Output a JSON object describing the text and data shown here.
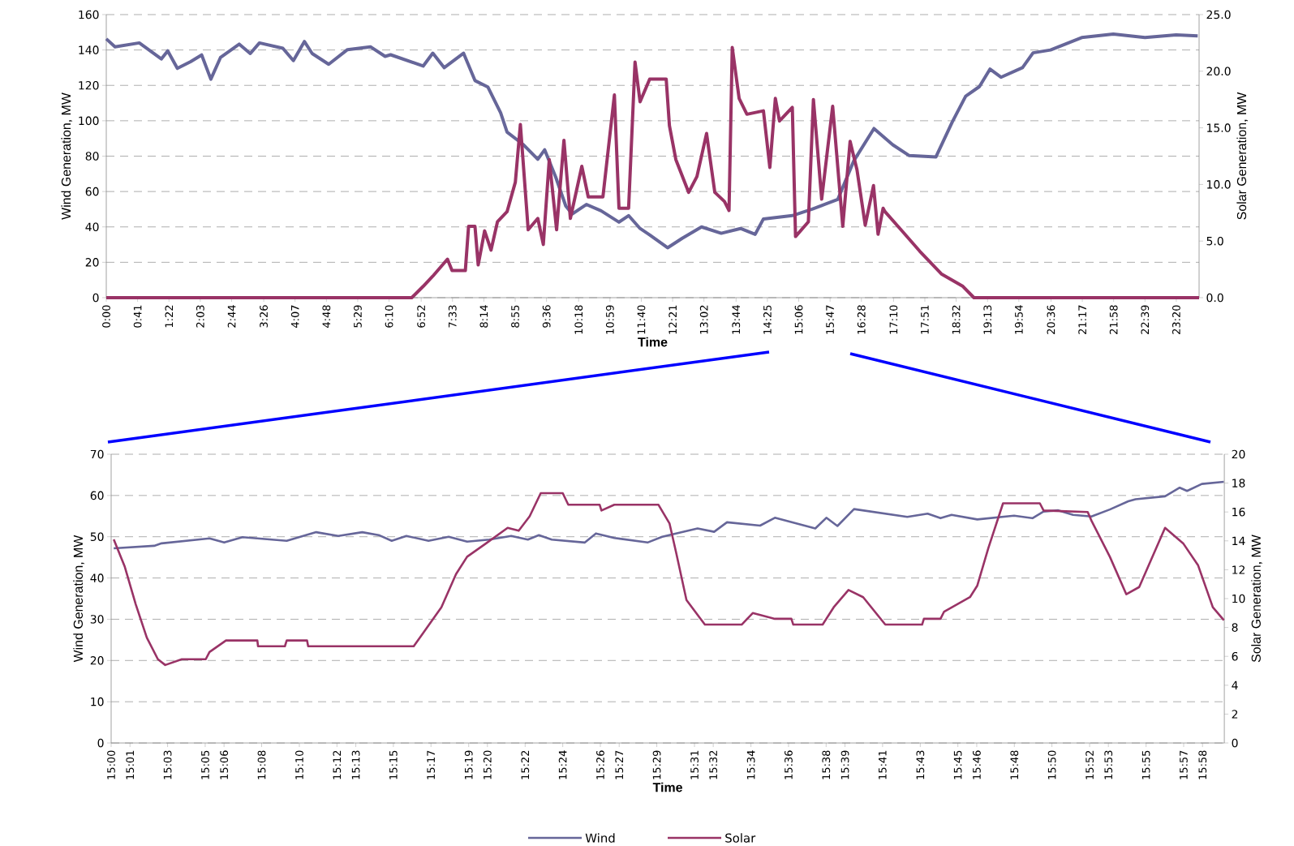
{
  "chart_data": [
    {
      "type": "line",
      "xlabel": "Time",
      "ylabel": "Wind Generation, MW",
      "y2label": "Solar Generation, MW",
      "xlim": [
        0,
        23.83
      ],
      "xticks": [
        {
          "value": 0,
          "label": "0:00"
        },
        {
          "value": 0.6833,
          "label": "0:41"
        },
        {
          "value": 1.3667,
          "label": "1:22"
        },
        {
          "value": 2.05,
          "label": "2:03"
        },
        {
          "value": 2.7333,
          "label": "2:44"
        },
        {
          "value": 3.4333,
          "label": "3:26"
        },
        {
          "value": 4.1167,
          "label": "4:07"
        },
        {
          "value": 4.8,
          "label": "4:48"
        },
        {
          "value": 5.4833,
          "label": "5:29"
        },
        {
          "value": 6.1667,
          "label": "6:10"
        },
        {
          "value": 6.8667,
          "label": "6:52"
        },
        {
          "value": 7.55,
          "label": "7:33"
        },
        {
          "value": 8.2333,
          "label": "8:14"
        },
        {
          "value": 8.9167,
          "label": "8:55"
        },
        {
          "value": 9.6,
          "label": "9:36"
        },
        {
          "value": 10.3,
          "label": "10:18"
        },
        {
          "value": 10.9833,
          "label": "10:59"
        },
        {
          "value": 11.6667,
          "label": "11:40"
        },
        {
          "value": 12.35,
          "label": "12:21"
        },
        {
          "value": 13.0333,
          "label": "13:02"
        },
        {
          "value": 13.7333,
          "label": "13:44"
        },
        {
          "value": 14.4167,
          "label": "14:25"
        },
        {
          "value": 15.1,
          "label": "15:06"
        },
        {
          "value": 15.7833,
          "label": "15:47"
        },
        {
          "value": 16.4667,
          "label": "16:28"
        },
        {
          "value": 17.1667,
          "label": "17:10"
        },
        {
          "value": 17.85,
          "label": "17:51"
        },
        {
          "value": 18.5333,
          "label": "18:32"
        },
        {
          "value": 19.2167,
          "label": "19:13"
        },
        {
          "value": 19.9,
          "label": "19:54"
        },
        {
          "value": 20.6,
          "label": "20:36"
        },
        {
          "value": 21.2833,
          "label": "21:17"
        },
        {
          "value": 21.9667,
          "label": "21:58"
        },
        {
          "value": 22.65,
          "label": "22:39"
        },
        {
          "value": 23.3333,
          "label": "23:20"
        }
      ],
      "ylim": [
        0,
        160
      ],
      "yticks": [
        0,
        20,
        40,
        60,
        80,
        100,
        120,
        140,
        160
      ],
      "y2lim": [
        0,
        25
      ],
      "y2ticks": [
        {
          "value": 0,
          "label": "0.0"
        },
        {
          "value": 5,
          "label": "5.0"
        },
        {
          "value": 10,
          "label": "10.0"
        },
        {
          "value": 15,
          "label": "15.0"
        },
        {
          "value": 20,
          "label": "20.0"
        },
        {
          "value": 25,
          "label": "25.0"
        }
      ],
      "grid": "y",
      "series": [
        {
          "color": "#666699",
          "x": [
            0,
            0.19,
            0.72,
            1.2,
            1.34,
            1.55,
            1.84,
            2.08,
            2.28,
            2.49,
            2.9,
            3.14,
            3.34,
            3.85,
            4.08,
            4.32,
            4.49,
            4.85,
            5.26,
            5.76,
            6.08,
            6.2,
            6.91,
            7.12,
            7.37,
            7.79,
            8.04,
            8.32,
            8.6,
            8.74,
            9.1,
            9.41,
            9.56,
            9.8,
            10.02,
            10.16,
            10.47,
            10.79,
            11.18,
            11.39,
            11.64,
            11.85,
            12.24,
            12.56,
            12.98,
            13.41,
            13.83,
            14.15,
            14.33,
            14.96,
            15.39,
            15.95,
            16.3,
            16.74,
            17.15,
            17.51,
            18.09,
            18.45,
            18.74,
            19.04,
            19.27,
            19.51,
            19.98,
            20.21,
            20.59,
            21.27,
            21.96,
            22.65,
            23.33,
            23.8
          ],
          "values": [
            146.3,
            141.8,
            144,
            134.9,
            139.5,
            129.6,
            133.4,
            137.2,
            123.5,
            135.7,
            143.3,
            138,
            144,
            141,
            134,
            144.8,
            138,
            131.9,
            140.2,
            141.8,
            136.4,
            137.3,
            130.9,
            138.2,
            130,
            138.2,
            122.7,
            119.1,
            104.5,
            93.6,
            86.4,
            78.2,
            83.6,
            68.2,
            51.8,
            47.3,
            52.7,
            49.1,
            42.7,
            46.4,
            39.1,
            35.5,
            28.2,
            33.6,
            40,
            36.4,
            39.1,
            35.8,
            44.5,
            46.4,
            50,
            55.5,
            77.3,
            95.6,
            86.4,
            80.3,
            79.5,
            99.4,
            113.9,
            119.3,
            129.2,
            124.6,
            130,
            138.4,
            140,
            147,
            149,
            147,
            148.5,
            148
          ]
        },
        {
          "color": "#993366",
          "axis": "y2",
          "x": [
            0,
            6.66,
            6.91,
            7.12,
            7.44,
            7.54,
            7.83,
            7.9,
            8.04,
            8.11,
            8.25,
            8.39,
            8.53,
            8.74,
            8.92,
            9.03,
            9.2,
            9.41,
            9.53,
            9.66,
            9.82,
            9.98,
            10.12,
            10.37,
            10.51,
            10.83,
            11.08,
            11.18,
            11.39,
            11.53,
            11.64,
            11.85,
            12.21,
            12.28,
            12.42,
            12.7,
            12.88,
            13.09,
            13.27,
            13.48,
            13.58,
            13.65,
            13.8,
            13.97,
            14.33,
            14.47,
            14.59,
            14.68,
            14.96,
            15.03,
            15.31,
            15.42,
            15.6,
            15.84,
            16.06,
            16.22,
            16.37,
            16.55,
            16.73,
            16.83,
            16.94,
            16.98,
            17.33,
            17.74,
            18.21,
            18.68,
            18.92,
            23.83
          ],
          "values": [
            0,
            0,
            1.0,
            1.9,
            3.4,
            2.4,
            2.4,
            6.3,
            6.3,
            2.9,
            5.9,
            4.2,
            6.7,
            7.6,
            10.2,
            15.3,
            6.0,
            7.0,
            4.7,
            12.2,
            6.0,
            13.9,
            7.0,
            11.6,
            8.9,
            8.9,
            17.9,
            7.9,
            7.9,
            20.8,
            17.3,
            19.3,
            19.3,
            15.2,
            12.2,
            9.3,
            10.7,
            14.5,
            9.3,
            8.5,
            7.7,
            22.1,
            17.6,
            16.2,
            16.5,
            11.5,
            17.6,
            15.6,
            16.8,
            5.4,
            6.7,
            17.5,
            8.7,
            16.9,
            6.3,
            13.8,
            11.3,
            6.4,
            9.9,
            5.6,
            7.9,
            7.6,
            6.0,
            4.1,
            2.1,
            1.0,
            0,
            0
          ]
        }
      ]
    },
    {
      "type": "line",
      "xlabel": "Time",
      "ylabel": "Wind Generation, MW",
      "y2label": "Solar Generation, MW",
      "xlim": [
        15,
        15.986
      ],
      "xticks": [
        {
          "value": 15.0,
          "label": "15:00"
        },
        {
          "value": 15.0167,
          "label": "15:01"
        },
        {
          "value": 15.05,
          "label": "15:03"
        },
        {
          "value": 15.0833,
          "label": "15:05"
        },
        {
          "value": 15.1,
          "label": "15:06"
        },
        {
          "value": 15.1333,
          "label": "15:08"
        },
        {
          "value": 15.1667,
          "label": "15:10"
        },
        {
          "value": 15.2,
          "label": "15:12"
        },
        {
          "value": 15.2167,
          "label": "15:13"
        },
        {
          "value": 15.25,
          "label": "15:15"
        },
        {
          "value": 15.2833,
          "label": "15:17"
        },
        {
          "value": 15.3167,
          "label": "15:19"
        },
        {
          "value": 15.3333,
          "label": "15:20"
        },
        {
          "value": 15.3667,
          "label": "15:22"
        },
        {
          "value": 15.4,
          "label": "15:24"
        },
        {
          "value": 15.4333,
          "label": "15:26"
        },
        {
          "value": 15.45,
          "label": "15:27"
        },
        {
          "value": 15.4833,
          "label": "15:29"
        },
        {
          "value": 15.5167,
          "label": "15:31"
        },
        {
          "value": 15.5333,
          "label": "15:32"
        },
        {
          "value": 15.5667,
          "label": "15:34"
        },
        {
          "value": 15.6,
          "label": "15:36"
        },
        {
          "value": 15.6333,
          "label": "15:38"
        },
        {
          "value": 15.65,
          "label": "15:39"
        },
        {
          "value": 15.6833,
          "label": "15:41"
        },
        {
          "value": 15.7167,
          "label": "15:43"
        },
        {
          "value": 15.75,
          "label": "15:45"
        },
        {
          "value": 15.7667,
          "label": "15:46"
        },
        {
          "value": 15.8,
          "label": "15:48"
        },
        {
          "value": 15.8333,
          "label": "15:50"
        },
        {
          "value": 15.8667,
          "label": "15:52"
        },
        {
          "value": 15.8833,
          "label": "15:53"
        },
        {
          "value": 15.9167,
          "label": "15:55"
        },
        {
          "value": 15.95,
          "label": "15:57"
        },
        {
          "value": 15.9667,
          "label": "15:58"
        }
      ],
      "ylim": [
        0,
        70
      ],
      "yticks": [
        0,
        10,
        20,
        30,
        40,
        50,
        60,
        70
      ],
      "y2lim": [
        0,
        20
      ],
      "y2ticks": [
        0,
        2,
        4,
        6,
        8,
        10,
        12,
        14,
        16,
        18,
        20
      ],
      "grid": "y",
      "legend": "bottom",
      "series": [
        {
          "name": "Wind",
          "color": "#666699",
          "x": [
            15.0023,
            15.0381,
            15.0447,
            15.0871,
            15.1001,
            15.1164,
            15.1555,
            15.1816,
            15.2012,
            15.2224,
            15.237,
            15.2485,
            15.2615,
            15.2811,
            15.299,
            15.3153,
            15.3349,
            15.3544,
            15.3691,
            15.3789,
            15.3903,
            15.4196,
            15.4294,
            15.4457,
            15.4751,
            15.4881,
            15.5194,
            15.5341,
            15.5455,
            15.5748,
            15.5879,
            15.6237,
            15.6335,
            15.6433,
            15.658,
            15.7052,
            15.7232,
            15.7346,
            15.7444,
            15.7672,
            15.7998,
            15.8161,
            15.8259,
            15.8389,
            15.852,
            15.8683,
            15.8846,
            15.9009,
            15.9074,
            15.9335,
            15.9465,
            15.953,
            15.9661,
            15.9856
          ],
          "values": [
            47.2,
            47.8,
            48.4,
            49.6,
            48.6,
            49.9,
            49.0,
            51.1,
            50.2,
            51.1,
            50.4,
            49.0,
            50.2,
            49.0,
            50.0,
            48.8,
            49.3,
            50.2,
            49.3,
            50.4,
            49.3,
            48.6,
            50.8,
            49.7,
            48.6,
            50.0,
            52.0,
            51.2,
            53.5,
            52.7,
            54.6,
            52.0,
            54.6,
            52.6,
            56.7,
            54.8,
            55.6,
            54.5,
            55.3,
            54.2,
            55.1,
            54.5,
            56.1,
            56.4,
            55.3,
            54.9,
            56.6,
            58.6,
            59.1,
            59.8,
            61.9,
            61.1,
            62.8,
            63.3
          ]
        },
        {
          "name": "Solar",
          "color": "#993366",
          "axis": "y2",
          "x": [
            15.0023,
            15.0121,
            15.0218,
            15.0316,
            15.0414,
            15.0479,
            15.0626,
            15.0838,
            15.0871,
            15.1017,
            15.1295,
            15.1301,
            15.1539,
            15.1555,
            15.1735,
            15.1745,
            15.268,
            15.2762,
            15.2925,
            15.3055,
            15.3153,
            15.3316,
            15.3512,
            15.361,
            15.3707,
            15.3805,
            15.4,
            15.4049,
            15.4327,
            15.4343,
            15.4457,
            15.4848,
            15.4946,
            15.5004,
            15.5096,
            15.5259,
            15.5585,
            15.5683,
            15.5879,
            15.6025,
            15.6042,
            15.6302,
            15.64,
            15.6531,
            15.6661,
            15.6857,
            15.7183,
            15.7199,
            15.7346,
            15.7378,
            15.7607,
            15.7672,
            15.777,
            15.79,
            15.8226,
            15.8259,
            15.865,
            15.8683,
            15.8846,
            15.8992,
            15.9106,
            15.9335,
            15.9498,
            15.9628,
            15.9758,
            15.9856
          ],
          "values": [
            14.1,
            12.2,
            9.6,
            7.3,
            5.8,
            5.4,
            5.8,
            5.8,
            6.3,
            7.1,
            7.1,
            6.7,
            6.7,
            7.1,
            7.1,
            6.7,
            6.7,
            7.6,
            9.4,
            11.7,
            12.9,
            13.8,
            14.9,
            14.7,
            15.7,
            17.3,
            17.3,
            16.5,
            16.5,
            16.1,
            16.5,
            16.5,
            15.2,
            13.2,
            9.9,
            8.2,
            8.2,
            9.0,
            8.6,
            8.6,
            8.2,
            8.2,
            9.4,
            10.6,
            10.1,
            8.2,
            8.2,
            8.6,
            8.6,
            9.1,
            10.1,
            10.9,
            13.5,
            16.6,
            16.6,
            16.1,
            16.0,
            15.4,
            12.9,
            10.3,
            10.8,
            14.9,
            13.8,
            12.3,
            9.4,
            8.5
          ]
        }
      ]
    }
  ]
}
